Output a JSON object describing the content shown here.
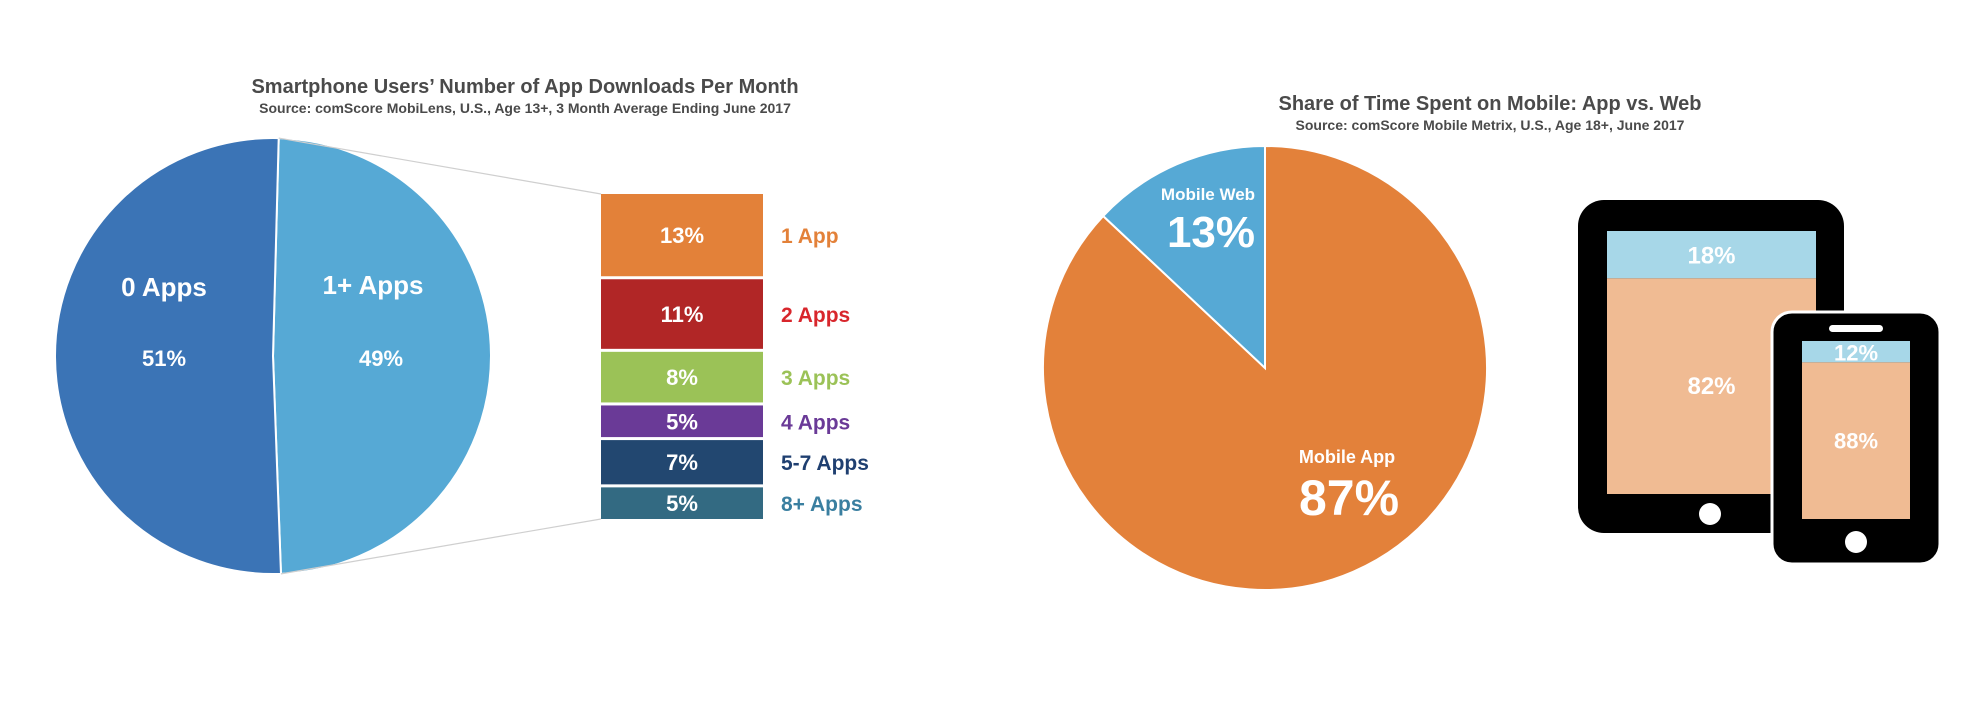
{
  "chart_data": [
    {
      "type": "pie",
      "title": "Smartphone Users’ Number of App Downloads Per Month",
      "subtitle": "Source: comScore MobiLens, U.S., Age 13+, 3 Month Average Ending June 2017",
      "slices": [
        {
          "label": "0 Apps",
          "value": 51,
          "value_label": "51%",
          "color": "#3b74b6"
        },
        {
          "label": "1+ Apps",
          "value": 49,
          "value_label": "49%",
          "color": "#56a9d5"
        }
      ],
      "breakdown": {
        "type": "bar",
        "of": "1+ Apps",
        "segments": [
          {
            "label": "1 App",
            "value": 13,
            "value_label": "13%",
            "color": "#e38139",
            "label_color": "#e38139"
          },
          {
            "label": "2 Apps",
            "value": 11,
            "value_label": "11%",
            "color": "#b12626",
            "label_color": "#d8262c"
          },
          {
            "label": "3 Apps",
            "value": 8,
            "value_label": "8%",
            "color": "#9bc257",
            "label_color": "#9bc257"
          },
          {
            "label": "4 Apps",
            "value": 5,
            "value_label": "5%",
            "color": "#6a3a97",
            "label_color": "#6a3a97"
          },
          {
            "label": "5-7 Apps",
            "value": 7,
            "value_label": "7%",
            "color": "#224770",
            "label_color": "#1f3f70"
          },
          {
            "label": "8+ Apps",
            "value": 5,
            "value_label": "5%",
            "color": "#336a82",
            "label_color": "#3a7fa0"
          }
        ]
      }
    },
    {
      "type": "pie",
      "title": "Share of Time Spent on Mobile: App vs. Web",
      "subtitle": "Source: comScore Mobile Metrix, U.S., Age 18+, June 2017",
      "slices": [
        {
          "label": "Mobile Web",
          "value": 13,
          "value_label": "13%",
          "color": "#56a9d5"
        },
        {
          "label": "Mobile App",
          "value": 87,
          "value_label": "87%",
          "color": "#e3813a"
        }
      ],
      "devices": [
        {
          "device": "tablet",
          "web_value": 18,
          "app_value": 82,
          "web_label": "18%",
          "app_label": "82%"
        },
        {
          "device": "smartphone",
          "web_value": 12,
          "app_value": 88,
          "web_label": "12%",
          "app_label": "88%"
        }
      ],
      "device_colors": {
        "web": "#a7d7e8",
        "app": "#f0bb93",
        "frame": "#000000"
      }
    }
  ]
}
